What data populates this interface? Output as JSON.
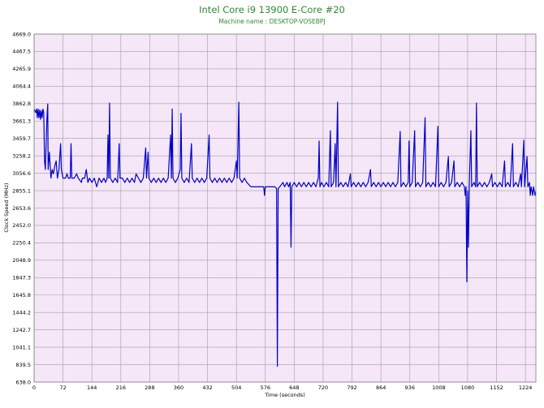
{
  "chart_data": {
    "type": "line",
    "title": "Intel Core i9 13900 E-Core #20",
    "subtitle": "Machine name : DESKTOP-VOSEBPJ",
    "xlabel": "Time (seconds)",
    "ylabel": "Clock Speed (MHz)",
    "xlim": [
      0,
      1250
    ],
    "ylim": [
      638.0,
      4669.0
    ],
    "x_ticks": [
      0,
      72,
      144,
      216,
      288,
      360,
      432,
      504,
      576,
      648,
      720,
      792,
      864,
      936,
      1008,
      1080,
      1152,
      1224
    ],
    "y_ticks": [
      638.0,
      839.5,
      1041.1,
      1242.7,
      1444.2,
      1645.8,
      1847.3,
      2048.9,
      2250.4,
      2452.0,
      2653.6,
      2855.1,
      3056.6,
      3258.2,
      3459.7,
      3661.3,
      3862.8,
      4064.4,
      4265.9,
      4467.5,
      4669.0
    ],
    "grid": true,
    "legend": "none",
    "colors": {
      "title": "#2e8b2e",
      "line": "#0000c8",
      "plot_bg": "#f5e6f8",
      "grid": "#a0a0a0"
    },
    "series": [
      {
        "values": [
          [
            0,
            3800
          ],
          [
            4,
            3760
          ],
          [
            6,
            3800
          ],
          [
            8,
            3700
          ],
          [
            10,
            3800
          ],
          [
            12,
            3700
          ],
          [
            14,
            3790
          ],
          [
            16,
            3680
          ],
          [
            18,
            3780
          ],
          [
            20,
            3700
          ],
          [
            22,
            3800
          ],
          [
            24,
            3760
          ],
          [
            26,
            3200
          ],
          [
            28,
            3100
          ],
          [
            30,
            3400
          ],
          [
            32,
            3700
          ],
          [
            34,
            3860
          ],
          [
            35,
            3100
          ],
          [
            38,
            3300
          ],
          [
            40,
            3150
          ],
          [
            42,
            3000
          ],
          [
            45,
            3100
          ],
          [
            48,
            3050
          ],
          [
            52,
            3150
          ],
          [
            55,
            3200
          ],
          [
            58,
            3000
          ],
          [
            62,
            3100
          ],
          [
            66,
            3400
          ],
          [
            68,
            3100
          ],
          [
            72,
            3000
          ],
          [
            78,
            3000
          ],
          [
            82,
            3050
          ],
          [
            85,
            3000
          ],
          [
            90,
            3000
          ],
          [
            92,
            3400
          ],
          [
            94,
            3000
          ],
          [
            100,
            3000
          ],
          [
            106,
            3050
          ],
          [
            110,
            3000
          ],
          [
            118,
            2950
          ],
          [
            120,
            3000
          ],
          [
            126,
            3000
          ],
          [
            130,
            3100
          ],
          [
            134,
            2950
          ],
          [
            138,
            3000
          ],
          [
            144,
            2950
          ],
          [
            150,
            3000
          ],
          [
            156,
            2900
          ],
          [
            162,
            3000
          ],
          [
            168,
            2950
          ],
          [
            174,
            3000
          ],
          [
            178,
            2950
          ],
          [
            182,
            3000
          ],
          [
            184,
            3500
          ],
          [
            186,
            3000
          ],
          [
            188,
            3870
          ],
          [
            190,
            3000
          ],
          [
            196,
            2950
          ],
          [
            202,
            3000
          ],
          [
            208,
            2950
          ],
          [
            212,
            3400
          ],
          [
            214,
            3000
          ],
          [
            220,
            3000
          ],
          [
            226,
            2950
          ],
          [
            232,
            3000
          ],
          [
            238,
            2950
          ],
          [
            244,
            3000
          ],
          [
            250,
            2950
          ],
          [
            254,
            3050
          ],
          [
            260,
            3000
          ],
          [
            266,
            2950
          ],
          [
            272,
            3000
          ],
          [
            278,
            3350
          ],
          [
            280,
            3000
          ],
          [
            284,
            3300
          ],
          [
            286,
            3000
          ],
          [
            292,
            2950
          ],
          [
            298,
            3000
          ],
          [
            304,
            2950
          ],
          [
            310,
            3000
          ],
          [
            316,
            2950
          ],
          [
            322,
            3000
          ],
          [
            328,
            2950
          ],
          [
            334,
            3000
          ],
          [
            340,
            3500
          ],
          [
            342,
            3000
          ],
          [
            344,
            3800
          ],
          [
            346,
            3000
          ],
          [
            352,
            2950
          ],
          [
            358,
            3000
          ],
          [
            364,
            3100
          ],
          [
            366,
            3750
          ],
          [
            368,
            3000
          ],
          [
            374,
            2950
          ],
          [
            380,
            3000
          ],
          [
            386,
            2950
          ],
          [
            392,
            3400
          ],
          [
            394,
            3000
          ],
          [
            400,
            2950
          ],
          [
            406,
            3000
          ],
          [
            412,
            2950
          ],
          [
            418,
            3000
          ],
          [
            424,
            2950
          ],
          [
            430,
            3000
          ],
          [
            436,
            3500
          ],
          [
            438,
            3000
          ],
          [
            444,
            2950
          ],
          [
            450,
            3000
          ],
          [
            456,
            2950
          ],
          [
            462,
            3000
          ],
          [
            468,
            2950
          ],
          [
            474,
            3000
          ],
          [
            480,
            2950
          ],
          [
            486,
            3000
          ],
          [
            492,
            2950
          ],
          [
            498,
            3000
          ],
          [
            504,
            3200
          ],
          [
            506,
            3000
          ],
          [
            510,
            3880
          ],
          [
            512,
            3000
          ],
          [
            518,
            2950
          ],
          [
            524,
            3000
          ],
          [
            530,
            2950
          ],
          [
            540,
            2900
          ],
          [
            552,
            2900
          ],
          [
            564,
            2900
          ],
          [
            572,
            2900
          ],
          [
            574,
            2800
          ],
          [
            576,
            2900
          ],
          [
            588,
            2900
          ],
          [
            600,
            2900
          ],
          [
            604,
            2880
          ],
          [
            606,
            820
          ],
          [
            608,
            2880
          ],
          [
            612,
            2900
          ],
          [
            620,
            2950
          ],
          [
            624,
            2900
          ],
          [
            630,
            2950
          ],
          [
            634,
            2900
          ],
          [
            638,
            2950
          ],
          [
            640,
            2200
          ],
          [
            642,
            2900
          ],
          [
            648,
            2950
          ],
          [
            654,
            2900
          ],
          [
            660,
            2950
          ],
          [
            666,
            2900
          ],
          [
            672,
            2950
          ],
          [
            678,
            2900
          ],
          [
            684,
            2950
          ],
          [
            690,
            2900
          ],
          [
            696,
            2950
          ],
          [
            702,
            2900
          ],
          [
            708,
            3000
          ],
          [
            710,
            3430
          ],
          [
            712,
            2900
          ],
          [
            716,
            2950
          ],
          [
            722,
            2900
          ],
          [
            728,
            2950
          ],
          [
            734,
            2900
          ],
          [
            738,
            3550
          ],
          [
            740,
            2900
          ],
          [
            746,
            2950
          ],
          [
            750,
            3400
          ],
          [
            752,
            2900
          ],
          [
            756,
            3880
          ],
          [
            758,
            2900
          ],
          [
            764,
            2950
          ],
          [
            770,
            2900
          ],
          [
            776,
            2950
          ],
          [
            782,
            2900
          ],
          [
            788,
            3050
          ],
          [
            790,
            2900
          ],
          [
            796,
            2950
          ],
          [
            802,
            2900
          ],
          [
            808,
            2950
          ],
          [
            814,
            2900
          ],
          [
            820,
            2950
          ],
          [
            826,
            2900
          ],
          [
            832,
            2950
          ],
          [
            838,
            3100
          ],
          [
            840,
            2900
          ],
          [
            846,
            2950
          ],
          [
            852,
            2900
          ],
          [
            858,
            2950
          ],
          [
            864,
            2900
          ],
          [
            870,
            2950
          ],
          [
            876,
            2900
          ],
          [
            882,
            2950
          ],
          [
            888,
            2900
          ],
          [
            894,
            2950
          ],
          [
            900,
            2900
          ],
          [
            906,
            2950
          ],
          [
            912,
            3540
          ],
          [
            914,
            2900
          ],
          [
            920,
            2950
          ],
          [
            926,
            2900
          ],
          [
            932,
            2950
          ],
          [
            934,
            3430
          ],
          [
            936,
            2900
          ],
          [
            942,
            2950
          ],
          [
            948,
            3550
          ],
          [
            950,
            2900
          ],
          [
            956,
            2950
          ],
          [
            962,
            2900
          ],
          [
            968,
            2950
          ],
          [
            974,
            3700
          ],
          [
            976,
            2900
          ],
          [
            982,
            2950
          ],
          [
            988,
            2900
          ],
          [
            994,
            2950
          ],
          [
            1000,
            2900
          ],
          [
            1006,
            3600
          ],
          [
            1008,
            2900
          ],
          [
            1014,
            2950
          ],
          [
            1020,
            2900
          ],
          [
            1026,
            2950
          ],
          [
            1032,
            3250
          ],
          [
            1034,
            2900
          ],
          [
            1040,
            2950
          ],
          [
            1046,
            3200
          ],
          [
            1048,
            2900
          ],
          [
            1054,
            2950
          ],
          [
            1060,
            2900
          ],
          [
            1066,
            2950
          ],
          [
            1072,
            2900
          ],
          [
            1074,
            2800
          ],
          [
            1076,
            2900
          ],
          [
            1078,
            1800
          ],
          [
            1080,
            2850
          ],
          [
            1082,
            2200
          ],
          [
            1084,
            2900
          ],
          [
            1088,
            3550
          ],
          [
            1090,
            2900
          ],
          [
            1096,
            2950
          ],
          [
            1100,
            2900
          ],
          [
            1102,
            3870
          ],
          [
            1104,
            2900
          ],
          [
            1110,
            2950
          ],
          [
            1116,
            2900
          ],
          [
            1122,
            2950
          ],
          [
            1128,
            2900
          ],
          [
            1134,
            2950
          ],
          [
            1140,
            3050
          ],
          [
            1142,
            2900
          ],
          [
            1148,
            2950
          ],
          [
            1154,
            2900
          ],
          [
            1160,
            2950
          ],
          [
            1166,
            2900
          ],
          [
            1172,
            3200
          ],
          [
            1174,
            2900
          ],
          [
            1180,
            2950
          ],
          [
            1186,
            2900
          ],
          [
            1192,
            3400
          ],
          [
            1194,
            2900
          ],
          [
            1200,
            2950
          ],
          [
            1206,
            2900
          ],
          [
            1212,
            3050
          ],
          [
            1214,
            2900
          ],
          [
            1220,
            3440
          ],
          [
            1222,
            2900
          ],
          [
            1228,
            3250
          ],
          [
            1230,
            2900
          ],
          [
            1234,
            2950
          ],
          [
            1236,
            2800
          ],
          [
            1238,
            2900
          ],
          [
            1242,
            2800
          ],
          [
            1244,
            2900
          ],
          [
            1248,
            2800
          ],
          [
            1250,
            2850
          ]
        ]
      }
    ]
  }
}
